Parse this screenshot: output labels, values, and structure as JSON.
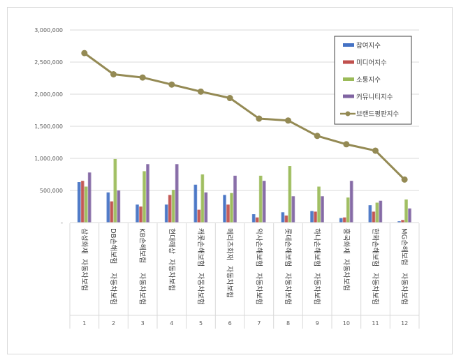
{
  "chart_data": {
    "type": "bar",
    "title": "",
    "xlabel": "",
    "ylabel": "",
    "ylim": [
      0,
      3000000
    ],
    "yticks": [
      0,
      500000,
      1000000,
      1500000,
      2000000,
      2500000,
      3000000
    ],
    "ytick_labels": [
      "-",
      "500,000",
      "1,000,000",
      "1,500,000",
      "2,000,000",
      "2,500,000",
      "3,000,000"
    ],
    "legend_position": "top-right",
    "categories": [
      "삼성화재자동차보험",
      "DB손해보험자동차보험",
      "KB손해보험자동차보험",
      "현대해상자동차보험",
      "캐롯손해보험자동차보험",
      "메리츠화재자동차보험",
      "악사손해보험자동차보험",
      "롯데손해보험자동차보험",
      "하나손해보험자동차보험",
      "흥국화재자동차보험",
      "한화손해보험자동차보험",
      "MG손해보험자동차보험"
    ],
    "category_lines": [
      [
        "삼성화재",
        "자동차보험"
      ],
      [
        "DB손해보험",
        "자동차보험"
      ],
      [
        "KB손해보험",
        "자동차보험"
      ],
      [
        "현대해상",
        "자동차보험"
      ],
      [
        "캐롯손해보험",
        "자동차보험"
      ],
      [
        "메리츠화재",
        "자동차보험"
      ],
      [
        "악사손해보험",
        "자동차보험"
      ],
      [
        "롯데손해보험",
        "자동차보험"
      ],
      [
        "하나손해보험",
        "자동차보험"
      ],
      [
        "흥국화재",
        "자동차보험"
      ],
      [
        "한화손해보험",
        "자동차보험"
      ],
      [
        "MG손해보험",
        "자동차보험"
      ]
    ],
    "index_labels": [
      "1",
      "2",
      "3",
      "4",
      "5",
      "6",
      "7",
      "8",
      "9",
      "10",
      "11",
      "12"
    ],
    "series": [
      {
        "name": "참여지수",
        "type": "bar",
        "color": "#4472c4",
        "values": [
          630000,
          470000,
          280000,
          280000,
          590000,
          430000,
          130000,
          160000,
          180000,
          70000,
          270000,
          20000
        ]
      },
      {
        "name": "미디어지수",
        "type": "bar",
        "color": "#c0504d",
        "values": [
          650000,
          330000,
          250000,
          430000,
          200000,
          280000,
          80000,
          110000,
          170000,
          80000,
          170000,
          40000
        ]
      },
      {
        "name": "소통지수",
        "type": "bar",
        "color": "#9bbb59",
        "values": [
          560000,
          990000,
          800000,
          510000,
          750000,
          460000,
          730000,
          880000,
          560000,
          390000,
          310000,
          360000
        ]
      },
      {
        "name": "커뮤니티지수",
        "type": "bar",
        "color": "#8064a2",
        "values": [
          780000,
          500000,
          910000,
          910000,
          470000,
          730000,
          650000,
          410000,
          410000,
          650000,
          340000,
          220000
        ]
      },
      {
        "name": "브랜드평판지수",
        "type": "line",
        "color": "#948a54",
        "values": [
          2640000,
          2310000,
          2260000,
          2150000,
          2040000,
          1940000,
          1620000,
          1590000,
          1350000,
          1220000,
          1120000,
          670000
        ]
      }
    ]
  }
}
